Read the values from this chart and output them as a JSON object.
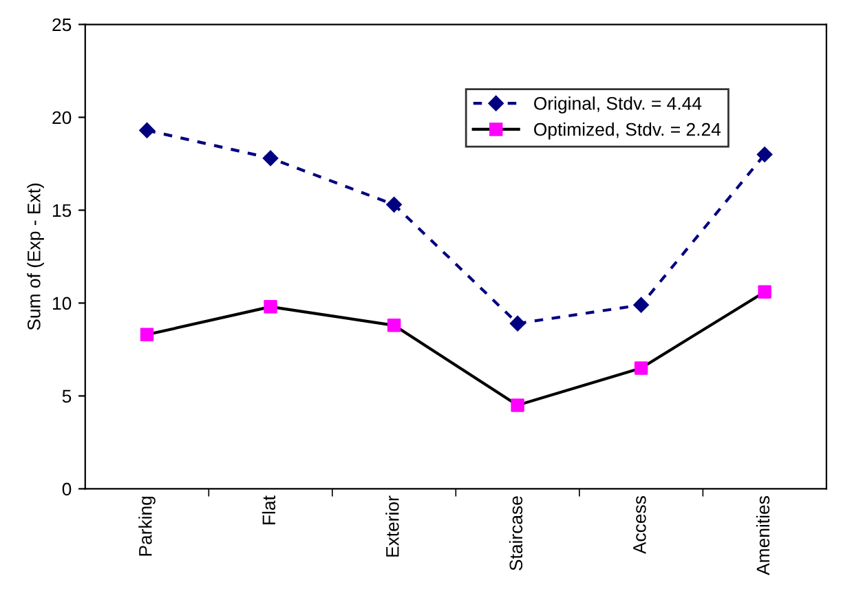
{
  "chart_data": {
    "type": "line",
    "ylabel": "Sum of (Exp - Ext)",
    "categories": [
      "Parking",
      "Flat",
      "Exterior",
      "Staircase",
      "Access",
      "Amenities"
    ],
    "series": [
      {
        "name": "Original, Stdv. = 4.44",
        "color": "#000080",
        "values": [
          19.3,
          17.8,
          15.3,
          8.9,
          9.9,
          18.0
        ],
        "marker": "diamond",
        "line_style": "dashed"
      },
      {
        "name": "Optimized, Stdv. = 2.24",
        "color": "#000000",
        "colors": [
          "#ff00ff",
          "#ff00ff",
          "#ff00ff",
          "#ff00ff",
          "#ff00ff",
          "#ff00ff"
        ],
        "values": [
          8.3,
          9.8,
          8.8,
          4.5,
          6.5,
          10.6
        ],
        "marker": "square",
        "line_style": "solid"
      }
    ],
    "ylim": [
      0,
      25
    ],
    "yticks": [
      0,
      5,
      10,
      15,
      20,
      25
    ],
    "grid": false,
    "legend": "top right"
  }
}
